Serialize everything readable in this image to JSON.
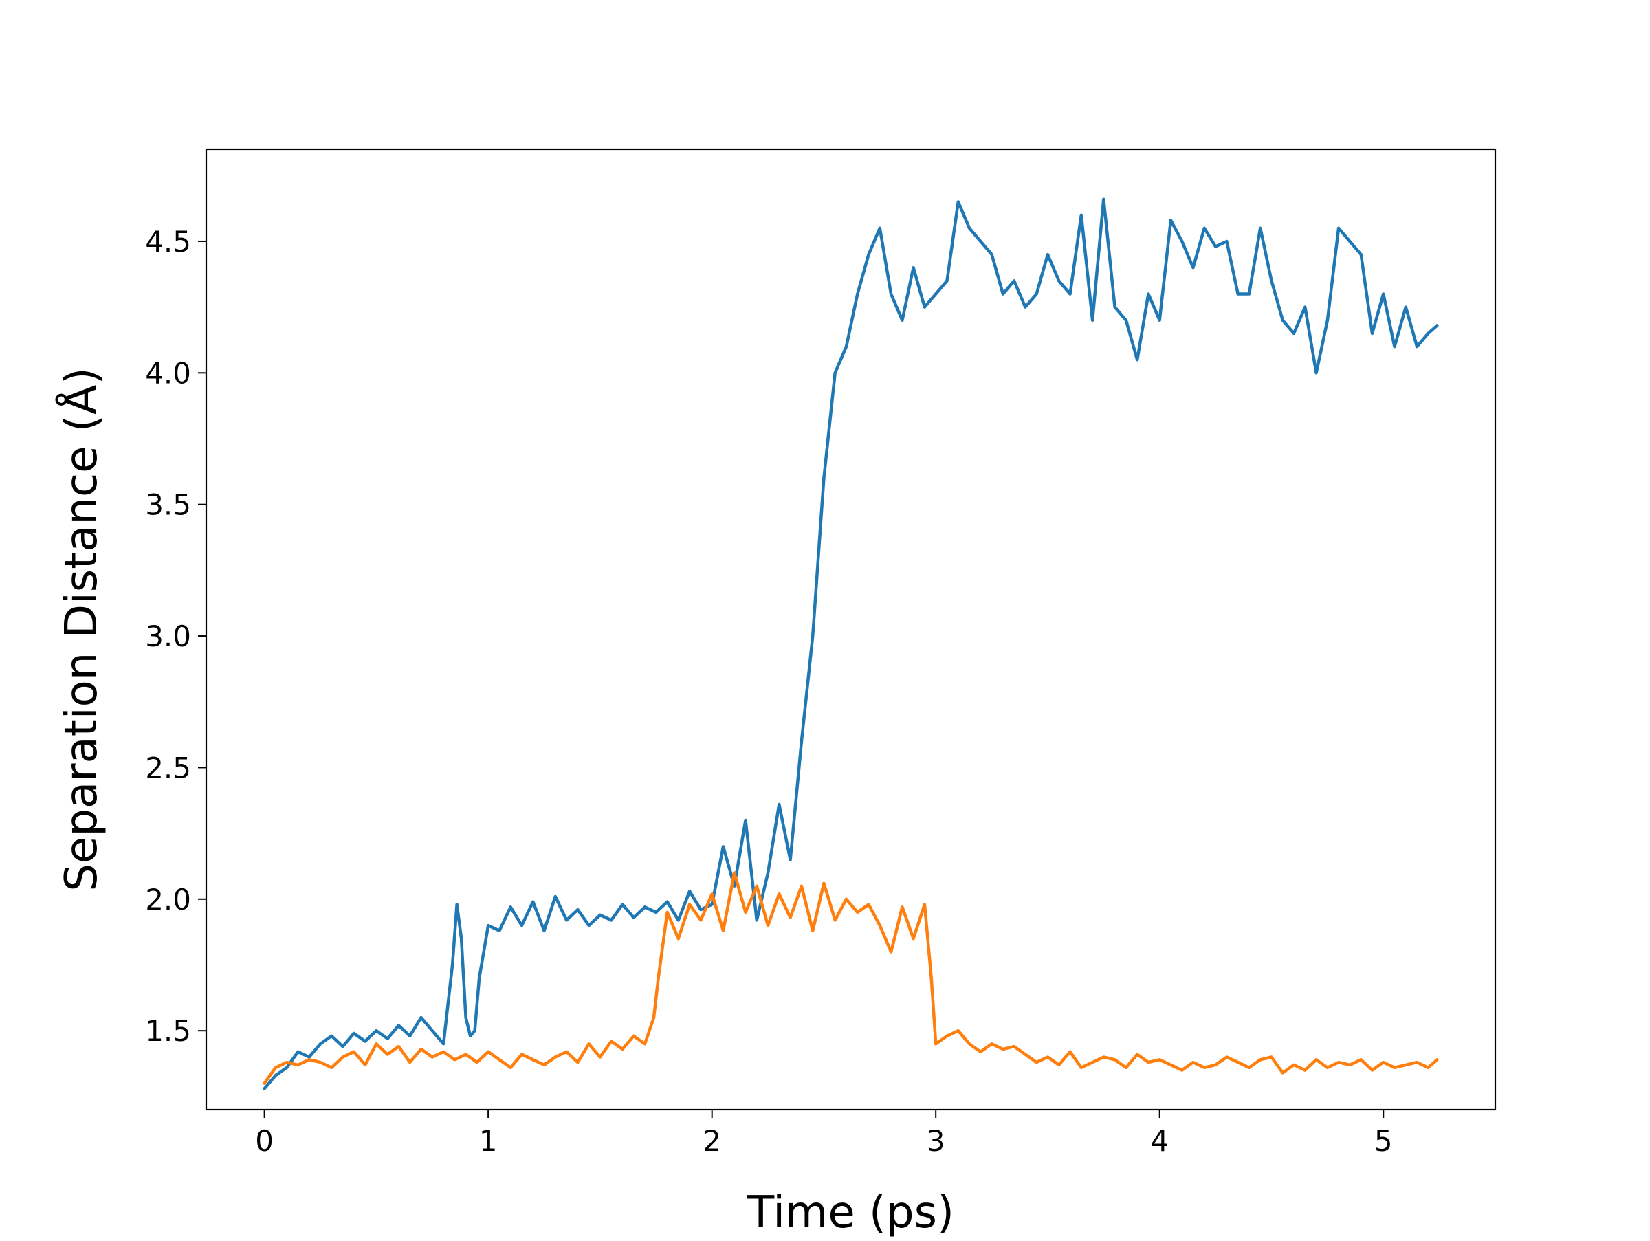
{
  "chart_data": {
    "type": "line",
    "title": "",
    "xlabel": "Time (ps)",
    "ylabel": "Separation Distance (Å)",
    "xlim": [
      -0.26,
      5.5
    ],
    "ylim": [
      1.2,
      4.85
    ],
    "x_ticks": [
      0,
      1,
      2,
      3,
      4,
      5
    ],
    "x_tick_labels": [
      "0",
      "1",
      "2",
      "3",
      "4",
      "5"
    ],
    "y_ticks": [
      1.5,
      2.0,
      2.5,
      3.0,
      3.5,
      4.0,
      4.5
    ],
    "y_tick_labels": [
      "1.5",
      "2.0",
      "2.5",
      "3.0",
      "3.5",
      "4.0",
      "4.5"
    ],
    "grid": false,
    "legend": "none",
    "series": [
      {
        "color": "#1f77b4",
        "x": [
          0.0,
          0.05,
          0.1,
          0.15,
          0.2,
          0.25,
          0.3,
          0.35,
          0.4,
          0.45,
          0.5,
          0.55,
          0.6,
          0.65,
          0.7,
          0.75,
          0.8,
          0.84,
          0.86,
          0.88,
          0.9,
          0.92,
          0.94,
          0.96,
          1.0,
          1.05,
          1.1,
          1.15,
          1.2,
          1.25,
          1.3,
          1.35,
          1.4,
          1.45,
          1.5,
          1.55,
          1.6,
          1.65,
          1.7,
          1.75,
          1.8,
          1.85,
          1.9,
          1.95,
          2.0,
          2.05,
          2.1,
          2.15,
          2.2,
          2.25,
          2.3,
          2.35,
          2.4,
          2.45,
          2.5,
          2.55,
          2.6,
          2.65,
          2.7,
          2.75,
          2.8,
          2.85,
          2.9,
          2.95,
          3.0,
          3.05,
          3.1,
          3.15,
          3.2,
          3.25,
          3.3,
          3.35,
          3.4,
          3.45,
          3.5,
          3.55,
          3.6,
          3.65,
          3.7,
          3.75,
          3.8,
          3.85,
          3.9,
          3.95,
          4.0,
          4.05,
          4.1,
          4.15,
          4.2,
          4.25,
          4.3,
          4.35,
          4.4,
          4.45,
          4.5,
          4.55,
          4.6,
          4.65,
          4.7,
          4.75,
          4.8,
          4.85,
          4.9,
          4.95,
          5.0,
          5.05,
          5.1,
          5.15,
          5.2,
          5.24
        ],
        "y": [
          1.28,
          1.33,
          1.36,
          1.42,
          1.4,
          1.45,
          1.48,
          1.44,
          1.49,
          1.46,
          1.5,
          1.47,
          1.52,
          1.48,
          1.55,
          1.5,
          1.45,
          1.75,
          1.98,
          1.85,
          1.55,
          1.48,
          1.5,
          1.7,
          1.9,
          1.88,
          1.97,
          1.9,
          1.99,
          1.88,
          2.01,
          1.92,
          1.96,
          1.9,
          1.94,
          1.92,
          1.98,
          1.93,
          1.97,
          1.95,
          1.99,
          1.92,
          2.03,
          1.96,
          1.98,
          2.2,
          2.05,
          2.3,
          1.92,
          2.1,
          2.36,
          2.15,
          2.6,
          3.0,
          3.6,
          4.0,
          4.1,
          4.3,
          4.45,
          4.55,
          4.3,
          4.2,
          4.4,
          4.25,
          4.3,
          4.35,
          4.65,
          4.55,
          4.5,
          4.45,
          4.3,
          4.35,
          4.25,
          4.3,
          4.45,
          4.35,
          4.3,
          4.6,
          4.2,
          4.66,
          4.25,
          4.2,
          4.05,
          4.3,
          4.2,
          4.58,
          4.5,
          4.4,
          4.55,
          4.48,
          4.5,
          4.3,
          4.3,
          4.55,
          4.35,
          4.2,
          4.15,
          4.25,
          4.0,
          4.2,
          4.55,
          4.5,
          4.45,
          4.15,
          4.3,
          4.1,
          4.25,
          4.1,
          4.15,
          4.18
        ]
      },
      {
        "color": "#ff7f0e",
        "x": [
          0.0,
          0.05,
          0.1,
          0.15,
          0.2,
          0.25,
          0.3,
          0.35,
          0.4,
          0.45,
          0.5,
          0.55,
          0.6,
          0.65,
          0.7,
          0.75,
          0.8,
          0.85,
          0.9,
          0.95,
          1.0,
          1.05,
          1.1,
          1.15,
          1.2,
          1.25,
          1.3,
          1.35,
          1.4,
          1.45,
          1.5,
          1.55,
          1.6,
          1.65,
          1.7,
          1.74,
          1.76,
          1.8,
          1.85,
          1.9,
          1.95,
          2.0,
          2.05,
          2.1,
          2.15,
          2.2,
          2.25,
          2.3,
          2.35,
          2.4,
          2.45,
          2.5,
          2.55,
          2.6,
          2.65,
          2.7,
          2.75,
          2.8,
          2.85,
          2.9,
          2.95,
          2.98,
          3.0,
          3.05,
          3.1,
          3.15,
          3.2,
          3.25,
          3.3,
          3.35,
          3.4,
          3.45,
          3.5,
          3.55,
          3.6,
          3.65,
          3.7,
          3.75,
          3.8,
          3.85,
          3.9,
          3.95,
          4.0,
          4.05,
          4.1,
          4.15,
          4.2,
          4.25,
          4.3,
          4.35,
          4.4,
          4.45,
          4.5,
          4.55,
          4.6,
          4.65,
          4.7,
          4.75,
          4.8,
          4.85,
          4.9,
          4.95,
          5.0,
          5.05,
          5.1,
          5.15,
          5.2,
          5.24
        ],
        "y": [
          1.3,
          1.36,
          1.38,
          1.37,
          1.39,
          1.38,
          1.36,
          1.4,
          1.42,
          1.37,
          1.45,
          1.41,
          1.44,
          1.38,
          1.43,
          1.4,
          1.42,
          1.39,
          1.41,
          1.38,
          1.42,
          1.39,
          1.36,
          1.41,
          1.39,
          1.37,
          1.4,
          1.42,
          1.38,
          1.45,
          1.4,
          1.46,
          1.43,
          1.48,
          1.45,
          1.55,
          1.7,
          1.95,
          1.85,
          1.98,
          1.92,
          2.02,
          1.88,
          2.1,
          1.95,
          2.05,
          1.9,
          2.02,
          1.93,
          2.05,
          1.88,
          2.06,
          1.92,
          2.0,
          1.95,
          1.98,
          1.9,
          1.8,
          1.97,
          1.85,
          1.98,
          1.7,
          1.45,
          1.48,
          1.5,
          1.45,
          1.42,
          1.45,
          1.43,
          1.44,
          1.41,
          1.38,
          1.4,
          1.37,
          1.42,
          1.36,
          1.38,
          1.4,
          1.39,
          1.36,
          1.41,
          1.38,
          1.39,
          1.37,
          1.35,
          1.38,
          1.36,
          1.37,
          1.4,
          1.38,
          1.36,
          1.39,
          1.4,
          1.34,
          1.37,
          1.35,
          1.39,
          1.36,
          1.38,
          1.37,
          1.39,
          1.35,
          1.38,
          1.36,
          1.37,
          1.38,
          1.36,
          1.39
        ]
      }
    ]
  }
}
